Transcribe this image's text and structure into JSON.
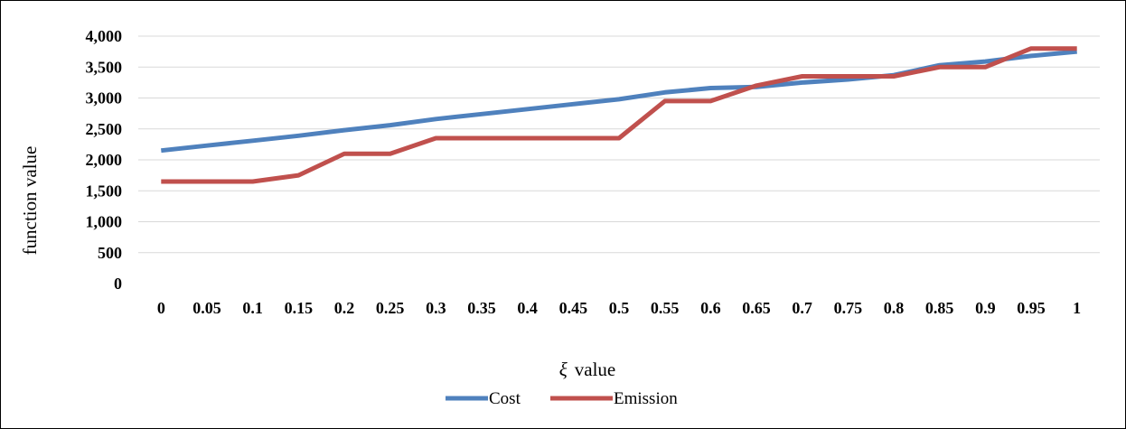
{
  "chart_data": {
    "type": "line",
    "xlabel_symbol": "ξ",
    "xlabel_text": "value",
    "ylabel": "function value",
    "ylim": [
      0,
      4000
    ],
    "yticks": [
      "0",
      "500",
      "1,000",
      "1,500",
      "2,000",
      "2,500",
      "3,000",
      "3,500",
      "4,000"
    ],
    "ytick_values": [
      0,
      500,
      1000,
      1500,
      2000,
      2500,
      3000,
      3500,
      4000
    ],
    "categories": [
      "0",
      "0.05",
      "0.1",
      "0.15",
      "0.2",
      "0.25",
      "0.3",
      "0.35",
      "0.4",
      "0.45",
      "0.5",
      "0.55",
      "0.6",
      "0.65",
      "0.7",
      "0.75",
      "0.8",
      "0.85",
      "0.9",
      "0.95",
      "1"
    ],
    "grid": true,
    "legend_position": "bottom",
    "series": [
      {
        "name": "Cost",
        "color": "#4f81bd",
        "values": [
          2150,
          2230,
          2310,
          2390,
          2480,
          2560,
          2660,
          2740,
          2820,
          2900,
          2980,
          3090,
          3160,
          3180,
          3250,
          3300,
          3370,
          3530,
          3590,
          3680,
          3750
        ]
      },
      {
        "name": "Emission",
        "color": "#c0504d",
        "values": [
          1650,
          1650,
          1650,
          1750,
          2100,
          2100,
          2350,
          2350,
          2350,
          2350,
          2350,
          2950,
          2950,
          3200,
          3350,
          3350,
          3350,
          3500,
          3500,
          3800,
          3800
        ]
      }
    ]
  }
}
